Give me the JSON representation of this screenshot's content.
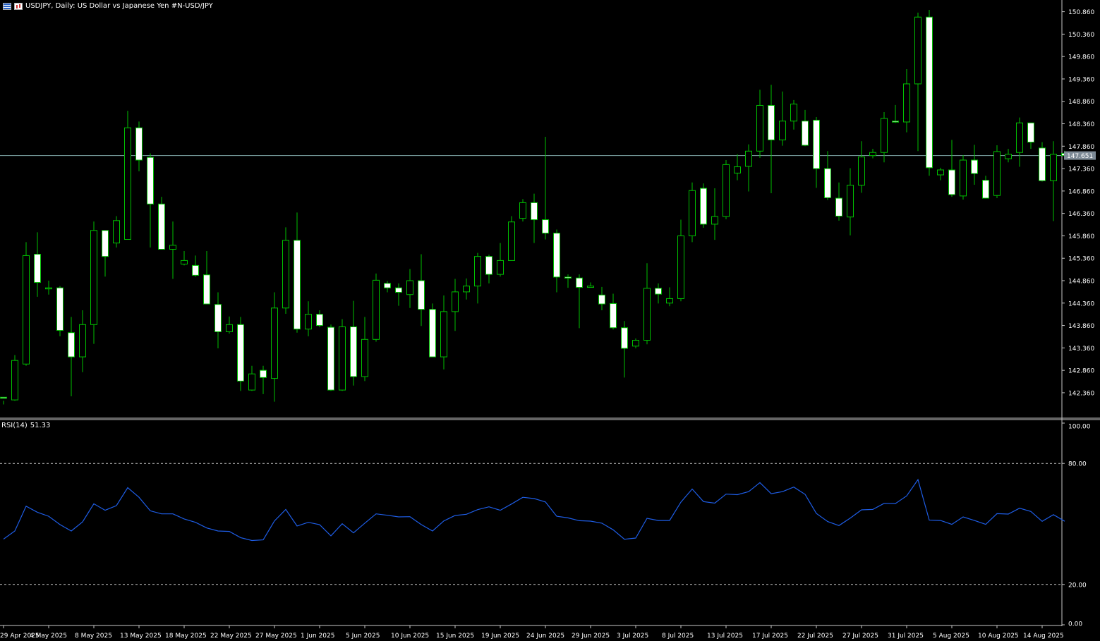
{
  "header": {
    "title": "USDJPY, Daily:  US Dollar vs  Japanese Yen #N-USD/JPY"
  },
  "rsi_panel": {
    "label": "RSI(14)",
    "value": "51.33",
    "levels": [
      "100.00",
      "80.00",
      "20.00",
      "0.00"
    ]
  },
  "colors": {
    "background": "#000000",
    "bull_body": "#000000",
    "bear_body": "#ffffff",
    "wick": "#00c000",
    "rsi_line": "#1e5de6",
    "price_line": "#7fa7a7"
  },
  "chart_data": [
    {
      "type": "candlestick",
      "title": "USDJPY, Daily:  US Dollar vs  Japanese Yen #N-USD/JPY",
      "ylim": [
        142.0,
        150.9
      ],
      "y_ticks": [
        "150.860",
        "150.360",
        "149.860",
        "149.360",
        "148.860",
        "148.360",
        "147.860",
        "147.360",
        "146.860",
        "146.360",
        "145.860",
        "145.360",
        "144.860",
        "144.360",
        "143.860",
        "143.360",
        "142.860",
        "142.360"
      ],
      "current_price": "147.651",
      "x_tick_labels": [
        "29 Apr 2025",
        "4 May 2025",
        "8 May 2025",
        "13 May 2025",
        "18 May 2025",
        "22 May 2025",
        "27 May 2025",
        "1 Jun 2025",
        "5 Jun 2025",
        "10 Jun 2025",
        "15 Jun 2025",
        "19 Jun 2025",
        "24 Jun 2025",
        "29 Jun 2025",
        "3 Jul 2025",
        "8 Jul 2025",
        "13 Jul 2025",
        "17 Jul 2025",
        "22 Jul 2025",
        "27 Jul 2025",
        "31 Jul 2025",
        "5 Aug 2025",
        "10 Aug 2025",
        "14 Aug 2025"
      ],
      "candles": [
        [
          142.26,
          142.24,
          142.18,
          142.1
        ],
        [
          142.2,
          143.08,
          143.2,
          142.18
        ],
        [
          143.0,
          145.42,
          145.72,
          142.96
        ],
        [
          145.45,
          144.82,
          145.94,
          144.5
        ],
        [
          144.7,
          144.7,
          144.86,
          144.55
        ],
        [
          144.7,
          143.75,
          144.74,
          143.62
        ],
        [
          143.7,
          143.16,
          144.05,
          142.28
        ],
        [
          143.16,
          143.88,
          144.2,
          142.82
        ],
        [
          143.88,
          145.98,
          146.18,
          143.45
        ],
        [
          145.98,
          145.4,
          145.98,
          144.95
        ],
        [
          145.7,
          146.2,
          146.3,
          145.6
        ],
        [
          145.78,
          148.27,
          148.65,
          145.82
        ],
        [
          148.27,
          147.55,
          148.41,
          147.3
        ],
        [
          147.61,
          146.57,
          147.7,
          145.6
        ],
        [
          146.57,
          145.56,
          146.73,
          145.56
        ],
        [
          145.56,
          145.65,
          146.18,
          144.9
        ],
        [
          145.23,
          145.31,
          145.52,
          145.2
        ],
        [
          145.2,
          144.98,
          145.42,
          144.95
        ],
        [
          144.99,
          144.34,
          145.52,
          144.34
        ],
        [
          144.33,
          143.72,
          144.6,
          143.35
        ],
        [
          143.72,
          143.88,
          144.06,
          143.68
        ],
        [
          143.88,
          142.62,
          144.05,
          142.4
        ],
        [
          142.42,
          142.78,
          142.96,
          142.4
        ],
        [
          142.86,
          142.7,
          142.96,
          142.33
        ],
        [
          142.68,
          144.25,
          144.6,
          142.16
        ],
        [
          144.25,
          145.76,
          146.05,
          144.12
        ],
        [
          145.76,
          143.78,
          146.38,
          143.7
        ],
        [
          143.78,
          144.11,
          144.4,
          143.62
        ],
        [
          144.11,
          143.86,
          144.2,
          143.82
        ],
        [
          143.82,
          142.42,
          143.88,
          142.4
        ],
        [
          142.42,
          143.83,
          144.0,
          142.4
        ],
        [
          143.83,
          142.72,
          144.41,
          142.52
        ],
        [
          142.72,
          143.55,
          144.05,
          142.62
        ],
        [
          143.55,
          144.87,
          145.02,
          143.5
        ],
        [
          144.8,
          144.7,
          144.85,
          144.6
        ],
        [
          144.7,
          144.6,
          144.8,
          144.3
        ],
        [
          144.55,
          144.86,
          145.12,
          144.25
        ],
        [
          144.86,
          144.22,
          145.45,
          143.85
        ],
        [
          144.22,
          143.16,
          144.35,
          143.16
        ],
        [
          143.16,
          144.17,
          144.53,
          142.88
        ],
        [
          144.17,
          144.61,
          144.9,
          143.74
        ],
        [
          144.61,
          144.74,
          144.91,
          144.44
        ],
        [
          144.74,
          145.4,
          145.48,
          144.35
        ],
        [
          145.4,
          145.0,
          145.44,
          144.8
        ],
        [
          145.0,
          145.31,
          145.7,
          144.95
        ],
        [
          145.31,
          146.17,
          146.3,
          145.31
        ],
        [
          146.25,
          146.6,
          146.68,
          146.18
        ],
        [
          146.6,
          146.22,
          146.8,
          145.7
        ],
        [
          146.22,
          145.92,
          148.07,
          145.78
        ],
        [
          145.92,
          144.94,
          146.0,
          144.6
        ],
        [
          144.94,
          144.92,
          145.0,
          144.7
        ],
        [
          144.92,
          144.71,
          145.0,
          143.8
        ],
        [
          144.71,
          144.74,
          144.82,
          144.71
        ],
        [
          144.54,
          144.34,
          144.72,
          144.2
        ],
        [
          144.35,
          143.81,
          144.57,
          143.77
        ],
        [
          143.81,
          143.35,
          143.96,
          142.7
        ],
        [
          143.4,
          143.53,
          143.57,
          143.35
        ],
        [
          143.53,
          144.69,
          145.25,
          143.44
        ],
        [
          144.69,
          144.56,
          144.8,
          144.35
        ],
        [
          144.36,
          144.46,
          144.71,
          144.29
        ],
        [
          144.46,
          145.86,
          146.22,
          144.4
        ],
        [
          145.86,
          146.87,
          147.05,
          145.72
        ],
        [
          146.92,
          146.12,
          147.03,
          146.04
        ],
        [
          146.12,
          146.29,
          146.92,
          145.77
        ],
        [
          146.29,
          147.45,
          147.55,
          146.23
        ],
        [
          147.26,
          147.4,
          147.68,
          147.1
        ],
        [
          147.41,
          147.75,
          147.9,
          146.85
        ],
        [
          147.75,
          148.77,
          149.12,
          147.6
        ],
        [
          148.77,
          148.0,
          149.23,
          146.81
        ],
        [
          148.0,
          148.42,
          149.08,
          147.87
        ],
        [
          148.42,
          148.8,
          148.89,
          148.23
        ],
        [
          148.42,
          147.88,
          148.67,
          147.86
        ],
        [
          148.44,
          147.36,
          148.51,
          146.93
        ],
        [
          147.36,
          146.71,
          147.75,
          146.66
        ],
        [
          146.7,
          146.3,
          147.05,
          146.2
        ],
        [
          146.28,
          146.99,
          147.37,
          145.87
        ],
        [
          146.99,
          147.62,
          147.97,
          146.82
        ],
        [
          147.65,
          147.72,
          147.8,
          147.59
        ],
        [
          147.72,
          148.48,
          148.62,
          147.5
        ],
        [
          148.42,
          148.4,
          148.78,
          148.38
        ],
        [
          148.4,
          149.25,
          149.58,
          148.17
        ],
        [
          149.25,
          150.74,
          150.84,
          147.75
        ],
        [
          150.74,
          147.38,
          150.9,
          147.2
        ],
        [
          147.22,
          147.33,
          147.38,
          147.1
        ],
        [
          147.33,
          146.78,
          148.0,
          146.73
        ],
        [
          146.75,
          147.55,
          147.66,
          146.67
        ],
        [
          147.55,
          147.25,
          147.89,
          147.0
        ],
        [
          147.1,
          146.7,
          147.2,
          146.72
        ],
        [
          146.76,
          147.74,
          147.88,
          146.7
        ],
        [
          147.58,
          147.68,
          147.8,
          147.5
        ],
        [
          147.72,
          148.38,
          148.5,
          147.4
        ],
        [
          148.38,
          147.95,
          148.36,
          147.8
        ],
        [
          147.82,
          147.09,
          147.95,
          147.07
        ],
        [
          147.09,
          147.68,
          147.97,
          146.19
        ],
        [
          147.7,
          147.65,
          147.76,
          147.56
        ]
      ]
    },
    {
      "type": "line",
      "title": "RSI(14) 51.33",
      "ylim": [
        0,
        100
      ],
      "levels": [
        80,
        20
      ],
      "values": [
        42.5,
        46.5,
        58.8,
        55.8,
        53.8,
        49.7,
        46.5,
        51.0,
        60.0,
        56.8,
        59.1,
        68.0,
        63.2,
        56.5,
        55.0,
        55.0,
        52.5,
        50.8,
        48.0,
        46.5,
        46.3,
        43.2,
        41.8,
        42.1,
        51.5,
        57.2,
        49.0,
        50.8,
        49.6,
        44.1,
        50.1,
        45.6,
        50.4,
        55.0,
        54.3,
        53.5,
        53.6,
        49.7,
        46.5,
        51.5,
        54.2,
        54.8,
        57.1,
        58.5,
        56.8,
        59.9,
        63.2,
        62.6,
        60.9,
        53.8,
        53.0,
        51.6,
        51.4,
        50.4,
        47.1,
        42.4,
        43.0,
        52.8,
        51.7,
        51.7,
        60.8,
        67.3,
        61.1,
        60.3,
        64.8,
        64.5,
        66.0,
        70.5,
        65.0,
        66.0,
        68.3,
        64.7,
        55.2,
        51.2,
        49.2,
        52.9,
        57.0,
        57.2,
        60.2,
        60.1,
        63.9,
        72.0,
        51.9,
        51.7,
        49.8,
        53.5,
        51.7,
        49.8,
        55.1,
        54.9,
        57.8,
        56.2,
        51.3,
        54.6,
        51.33
      ]
    }
  ]
}
